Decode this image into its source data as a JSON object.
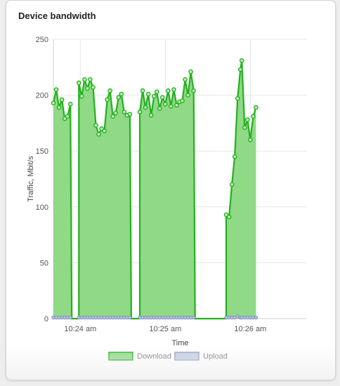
{
  "card": {
    "title": "Device bandwidth"
  },
  "chart_data": {
    "type": "area",
    "title": "",
    "xlabel": "Time",
    "ylabel": "Traffic, Mbit/s",
    "ylim": [
      0,
      250
    ],
    "yticks": [
      0,
      50,
      100,
      150,
      200,
      250
    ],
    "xticks": [
      {
        "t": 3,
        "label": "10:24 am"
      },
      {
        "t": 63,
        "label": "10:25 am"
      },
      {
        "t": 123,
        "label": "10:26 am"
      }
    ],
    "xrange": [
      -16,
      163
    ],
    "grid": true,
    "legend_position": "bottom",
    "series": [
      {
        "name": "Download",
        "color": "#22b11d",
        "fill": "#90d987",
        "points": [
          [
            -16,
            193
          ],
          [
            -14,
            205
          ],
          [
            -12,
            189
          ],
          [
            -10,
            196
          ],
          [
            -8,
            179
          ],
          [
            -6,
            181
          ],
          [
            -4,
            192
          ],
          [
            -3,
            0
          ],
          [
            2,
            0
          ],
          [
            2,
            211
          ],
          [
            4,
            199
          ],
          [
            6,
            214
          ],
          [
            8,
            206
          ],
          [
            10,
            214
          ],
          [
            12,
            207
          ],
          [
            14,
            173
          ],
          [
            16,
            165
          ],
          [
            18,
            170
          ],
          [
            20,
            168
          ],
          [
            22,
            196
          ],
          [
            24,
            204
          ],
          [
            26,
            181
          ],
          [
            28,
            184
          ],
          [
            30,
            198
          ],
          [
            32,
            201
          ],
          [
            34,
            185
          ],
          [
            36,
            182
          ],
          [
            38,
            183
          ],
          [
            39,
            0
          ],
          [
            45,
            0
          ],
          [
            45,
            185
          ],
          [
            47,
            204
          ],
          [
            49,
            189
          ],
          [
            51,
            201
          ],
          [
            53,
            182
          ],
          [
            55,
            199
          ],
          [
            57,
            203
          ],
          [
            59,
            188
          ],
          [
            61,
            198
          ],
          [
            63,
            192
          ],
          [
            65,
            204
          ],
          [
            67,
            190
          ],
          [
            69,
            205
          ],
          [
            71,
            191
          ],
          [
            73,
            194
          ],
          [
            75,
            195
          ],
          [
            77,
            214
          ],
          [
            79,
            200
          ],
          [
            81,
            221
          ],
          [
            83,
            204
          ],
          [
            84,
            0
          ],
          [
            106,
            0
          ],
          [
            106,
            93
          ],
          [
            108,
            91
          ],
          [
            110,
            120
          ],
          [
            112,
            145
          ],
          [
            114,
            197
          ],
          [
            116,
            223
          ],
          [
            117,
            231
          ],
          [
            119,
            171
          ],
          [
            121,
            178
          ],
          [
            123,
            160
          ],
          [
            125,
            181
          ],
          [
            127,
            189
          ]
        ]
      },
      {
        "name": "Upload",
        "color": "#8b9ec7",
        "fill": "#c5cde0",
        "points": [
          [
            -16,
            1
          ],
          [
            -14,
            1
          ],
          [
            -12,
            1
          ],
          [
            -10,
            1
          ],
          [
            -8,
            1
          ],
          [
            -6,
            1
          ],
          [
            -4,
            1
          ],
          [
            2,
            1
          ],
          [
            4,
            1
          ],
          [
            6,
            1
          ],
          [
            8,
            1
          ],
          [
            10,
            1
          ],
          [
            12,
            1
          ],
          [
            14,
            1
          ],
          [
            16,
            1
          ],
          [
            18,
            1
          ],
          [
            20,
            1
          ],
          [
            22,
            1
          ],
          [
            24,
            1
          ],
          [
            26,
            1
          ],
          [
            28,
            1
          ],
          [
            30,
            1
          ],
          [
            32,
            1
          ],
          [
            34,
            1
          ],
          [
            36,
            1
          ],
          [
            38,
            1
          ],
          [
            45,
            1
          ],
          [
            47,
            1
          ],
          [
            49,
            1
          ],
          [
            51,
            1
          ],
          [
            53,
            1
          ],
          [
            55,
            1
          ],
          [
            57,
            1
          ],
          [
            59,
            1
          ],
          [
            61,
            1
          ],
          [
            63,
            1
          ],
          [
            65,
            1
          ],
          [
            67,
            1
          ],
          [
            69,
            1
          ],
          [
            71,
            1
          ],
          [
            73,
            1
          ],
          [
            75,
            1
          ],
          [
            77,
            1
          ],
          [
            79,
            1
          ],
          [
            81,
            1
          ],
          [
            83,
            1
          ],
          [
            106,
            1
          ],
          [
            108,
            1
          ],
          [
            110,
            1
          ],
          [
            112,
            1
          ],
          [
            114,
            2
          ],
          [
            116,
            1
          ],
          [
            117,
            1
          ],
          [
            119,
            1
          ],
          [
            121,
            1
          ],
          [
            123,
            1
          ],
          [
            125,
            1
          ],
          [
            127,
            1
          ]
        ]
      }
    ]
  }
}
